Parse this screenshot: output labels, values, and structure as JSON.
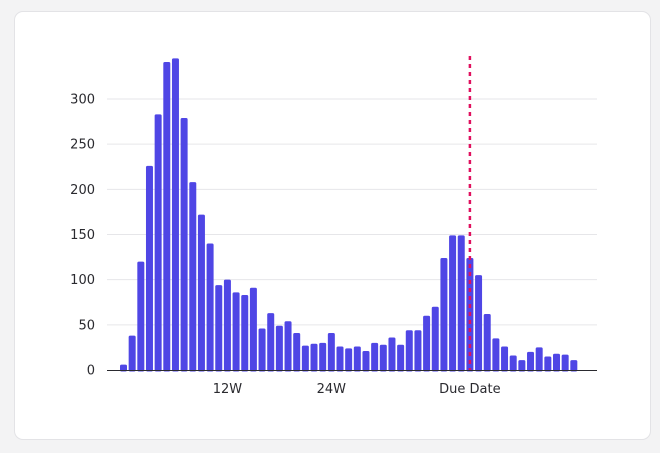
{
  "chart_data": {
    "type": "bar",
    "title": "",
    "xlabel": "",
    "ylabel": "",
    "ylim": [
      0,
      350
    ],
    "yticks": [
      0,
      50,
      100,
      150,
      200,
      250,
      300
    ],
    "grid": true,
    "x_ticks": [
      {
        "label": "12W",
        "bar_index": 12
      },
      {
        "label": "24W",
        "bar_index": 24
      },
      {
        "label": "Due Date",
        "bar_index": 40
      }
    ],
    "due_date_marker": {
      "label": "Due Date",
      "bar_index": 40
    },
    "values": [
      6,
      38,
      120,
      226,
      283,
      341,
      345,
      279,
      208,
      172,
      140,
      94,
      100,
      86,
      83,
      91,
      46,
      63,
      49,
      54,
      41,
      27,
      29,
      30,
      41,
      26,
      24,
      26,
      21,
      30,
      28,
      36,
      28,
      44,
      44,
      60,
      70,
      124,
      149,
      149,
      124,
      105,
      62,
      35,
      26,
      16,
      11,
      20,
      25,
      15,
      18,
      17,
      11
    ],
    "colors": {
      "bar": "#4f46e5",
      "due_line": "#e0115f",
      "grid": "#e6e6e9",
      "text": "#2a2a2f"
    }
  }
}
